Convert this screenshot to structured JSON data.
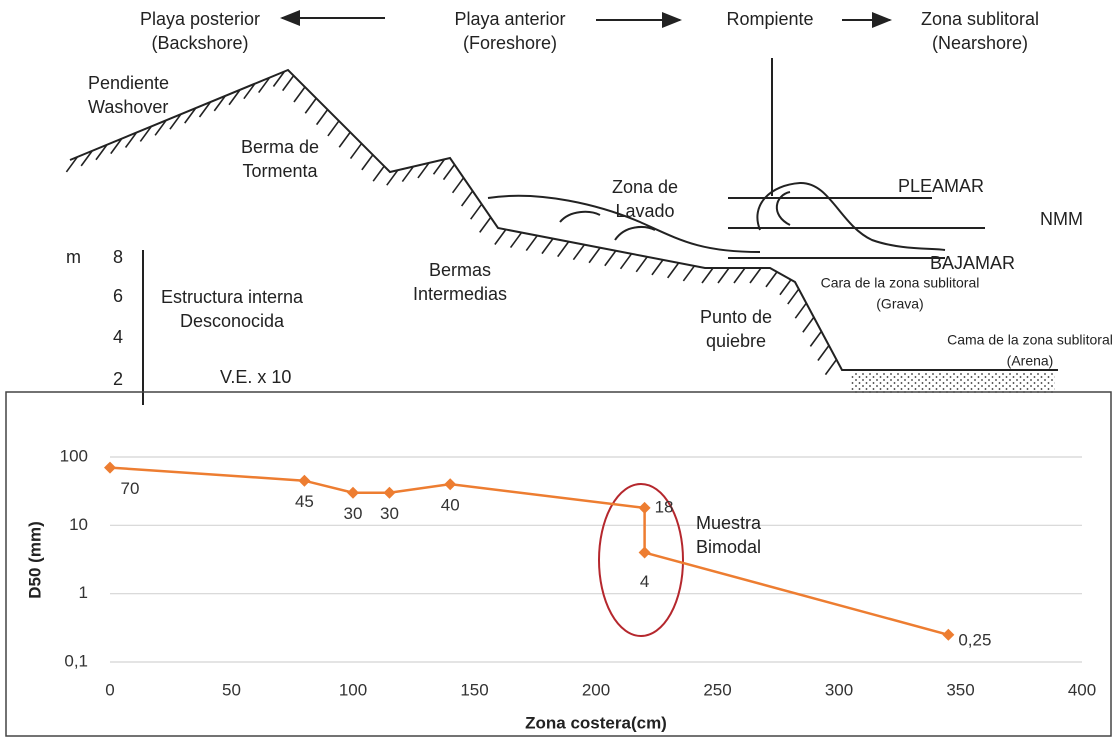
{
  "diagram": {
    "labels": [
      {
        "lines": [
          "Playa posterior",
          "(Backshore)"
        ]
      },
      {
        "lines": [
          "Playa anterior",
          "(Foreshore)"
        ]
      },
      {
        "lines": [
          "Rompiente"
        ]
      },
      {
        "lines": [
          "Zona sublitoral",
          "(Nearshore)"
        ]
      },
      {
        "lines": [
          "Pendiente",
          "Washover"
        ]
      },
      {
        "lines": [
          "Berma de",
          "Tormenta"
        ]
      },
      {
        "lines": [
          "Zona de",
          "Lavado"
        ]
      },
      {
        "lines": [
          "PLEAMAR"
        ]
      },
      {
        "lines": [
          "NMM"
        ]
      },
      {
        "lines": [
          "BAJAMAR"
        ]
      },
      {
        "lines": [
          "Bermas",
          "Intermedias"
        ]
      },
      {
        "lines": [
          "Cara de la zona sublitoral",
          "(Grava)"
        ]
      },
      {
        "lines": [
          "Punto de",
          "quiebre"
        ]
      },
      {
        "lines": [
          "Cama de la zona sublitoral",
          "(Arena)"
        ]
      },
      {
        "lines": [
          "Estructura interna",
          "Desconocida"
        ]
      },
      {
        "lines": [
          "V.E. x 10"
        ]
      },
      {
        "lines": [
          "m"
        ]
      }
    ],
    "scale": [
      "8",
      "6",
      "4",
      "2"
    ]
  },
  "chart_data": {
    "type": "line",
    "x": [
      0,
      80,
      100,
      115,
      140,
      220,
      220,
      345
    ],
    "values": [
      70,
      45,
      30,
      30,
      40,
      18,
      4,
      0.25
    ],
    "value_labels": [
      "70",
      "45",
      "30",
      "30",
      "40",
      "18",
      "4",
      "0,25"
    ],
    "color": "#ed7d31",
    "xlabel": "Zona costera(cm)",
    "ylabel": "D50 (mm)",
    "annotation": [
      "Muestra",
      "Bimodal"
    ],
    "xlim": [
      0,
      400
    ],
    "xticks": [
      0,
      50,
      100,
      150,
      200,
      250,
      300,
      350,
      400
    ],
    "ylim": [
      0.1,
      100
    ],
    "yticks": [
      {
        "value": 0.1,
        "label": "0,1"
      },
      1,
      10,
      100
    ],
    "yscale": "log",
    "grid": true
  }
}
